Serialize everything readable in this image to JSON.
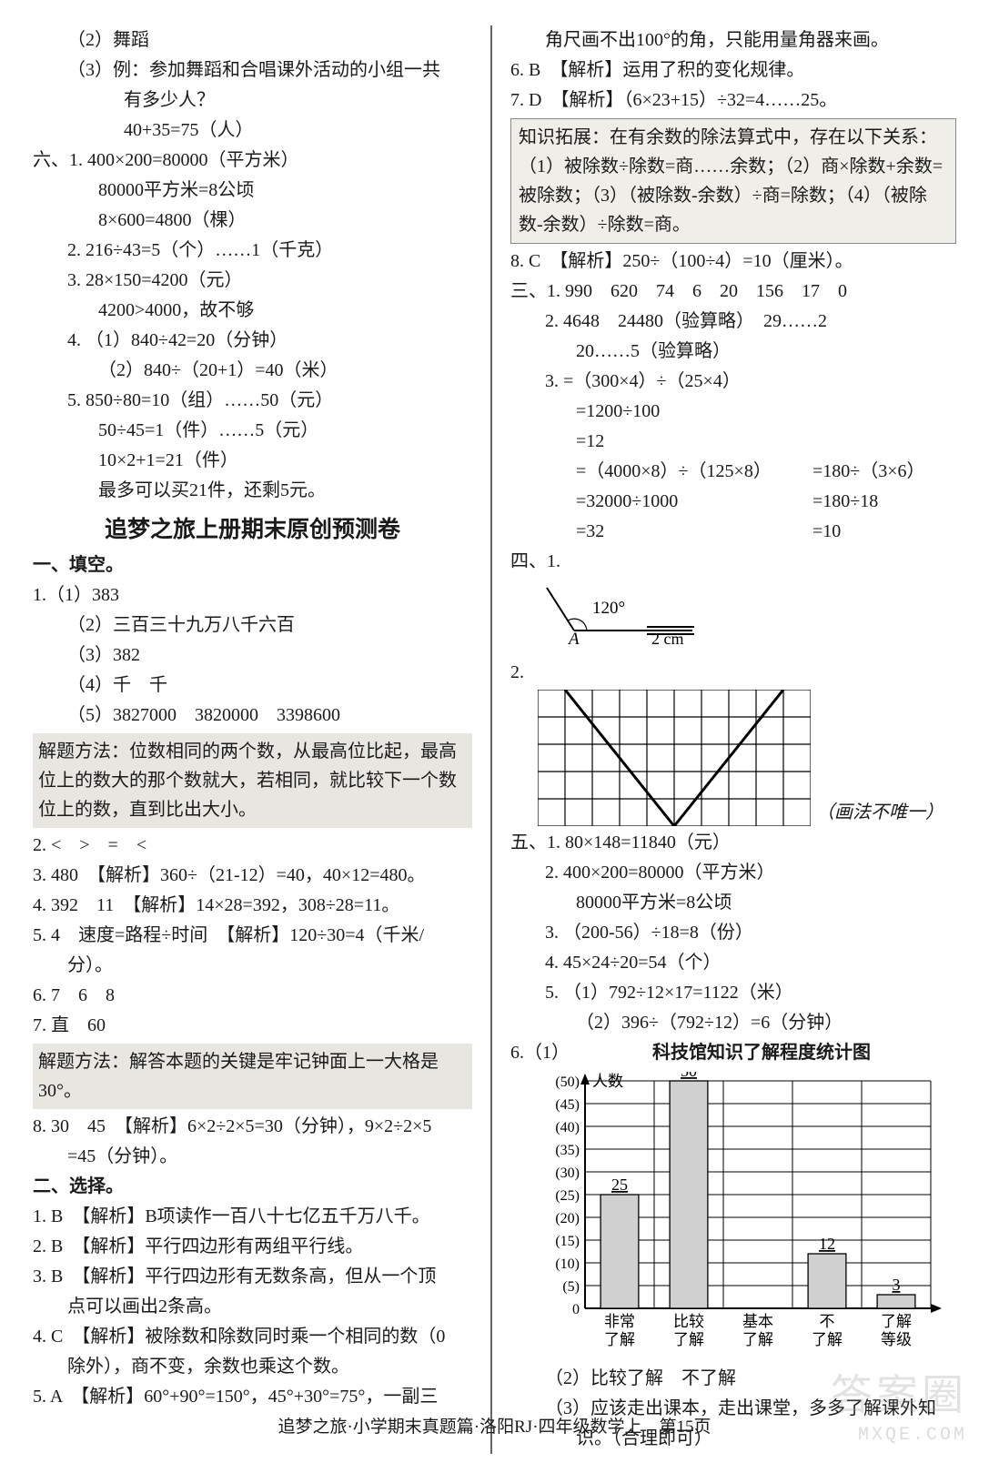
{
  "left": {
    "l1": "（2）舞蹈",
    "l2": "（3）例：参加舞蹈和合唱课外活动的小组一共",
    "l3": "有多少人？",
    "l4": "40+35=75（人）",
    "l5": "六、1. 400×200=80000（平方米）",
    "l6": "80000平方米=8公顷",
    "l7": "8×600=4800（棵）",
    "l8": "2. 216÷43=5（个）……1（千克）",
    "l9": "3. 28×150=4200（元）",
    "l10": "4200>4000，故不够",
    "l11": "4. （1）840÷42=20（分钟）",
    "l12": "（2）840÷（20+1）=40（米）",
    "l13": "5. 850÷80=10（组）……50（元）",
    "l14": "50÷45=1（件）……5（元）",
    "l15": "10×2+1=21（件）",
    "l16": "最多可以买21件，还剩5元。",
    "title": "追梦之旅上册期末原创预测卷",
    "sec1": "一、填空。",
    "l17": "1.（1）383",
    "l18": "（2）三百三十九万八千六百",
    "l19": "（3）382",
    "l20": "（4）千　千",
    "l21": "（5）3827000　3820000　3398600",
    "tip1": "解题方法：位数相同的两个数，从最高位比起，最高位上的数大的那个数就大，若相同，就比较下一个数位上的数，直到比出大小。",
    "l22": "2. <　>　=　<",
    "l23": "3. 480　【解析】360÷（21-12）=40，40×12=480。",
    "l24": "4. 392　11　【解析】14×28=392，308÷28=11。",
    "l25": "5. 4　速度=路程÷时间　【解析】120÷30=4（千米/",
    "l25b": "分）。",
    "l26": "6. 7　6　8",
    "l27": "7. 直　60",
    "tip2": "解题方法：解答本题的关键是牢记钟面上一大格是30°。",
    "l28": "8. 30　45　【解析】6×2÷2×5=30（分钟），9×2÷2×5",
    "l28b": "=45（分钟）。",
    "sec2": "二、选择。",
    "l29": "1. B　【解析】B项读作一百八十七亿五千万八千。",
    "l30": "2. B　【解析】平行四边形有两组平行线。",
    "l31": "3. B　【解析】平行四边形有无数条高，但从一个顶",
    "l31b": "点可以画出2条高。",
    "l32": "4. C　【解析】被除数和除数同时乘一个相同的数（0",
    "l32b": "除外），商不变，余数也乘这个数。",
    "l33": "5. A　【解析】60°+90°=150°，45°+30°=75°，一副三"
  },
  "right": {
    "r1": "角尺画不出100°的角，只能用量角器来画。",
    "r2": "6. B　【解析】运用了积的变化规律。",
    "r3": "7. D　【解析】（6×23+15）÷32=4……25。",
    "tip3": "知识拓展：在有余数的除法算式中，存在以下关系：（1）被除数÷除数=商……余数；（2）商×除数+余数=被除数；（3）（被除数-余数）÷商=除数；（4）（被除数-余数）÷除数=商。",
    "r4": "8. C　【解析】250÷（100÷4）=10（厘米）。",
    "r5": "三、1. 990　620　74　6　20　156　17　0",
    "r6": "2. 4648　24480（验算略）　29……2",
    "r7": "20……5（验算略）",
    "r8": "3. =（300×4）÷（25×4）",
    "r9": "=1200÷100",
    "r10": "=12",
    "r11a": "=（4000×8）÷（125×8）",
    "r11b": "=180÷（3×6）",
    "r12a": "=32000÷1000",
    "r12b": "=180÷18",
    "r13a": "=32",
    "r13b": "=10",
    "r14": "四、1.",
    "angle_label": "120°",
    "angle_A": "A",
    "angle_len": "2 cm",
    "r15": "2.",
    "grid_note": "（画法不唯一）",
    "r16": "五、1. 80×148=11840（元）",
    "r17": "2. 400×200=80000（平方米）",
    "r18": "80000平方米=8公顷",
    "r19": "3. （200-56）÷18=8（份）",
    "r20": "4. 45×24÷20=54（个）",
    "r21": "5. （1）792÷12×17=1122（米）",
    "r22": "（2）396÷（792÷12）=6（分钟）",
    "r23": "6.（1）",
    "chart": {
      "title": "科技馆知识了解程度统计图",
      "ylabel": "人数",
      "ymax": 50,
      "ystep": 5,
      "categories": [
        "非常\n了解",
        "比较\n了解",
        "基本\n了解",
        "不\n了解",
        "了解\n等级"
      ],
      "values": [
        25,
        50,
        null,
        12,
        3
      ],
      "bar_color": "#d0d0d0",
      "grid_color": "#000000",
      "background": "#ffffff"
    },
    "r24": "（2）比较了解　不了解",
    "r25": "（3）应该走出课本，走出课堂，多多了解课外知",
    "r25b": "识。（合理即可）"
  },
  "footer": "追梦之旅·小学期末真题篇·洛阳RJ·四年级数学上　第15页",
  "watermark": "答案圈",
  "watermark_sub": "MXQE.COM"
}
